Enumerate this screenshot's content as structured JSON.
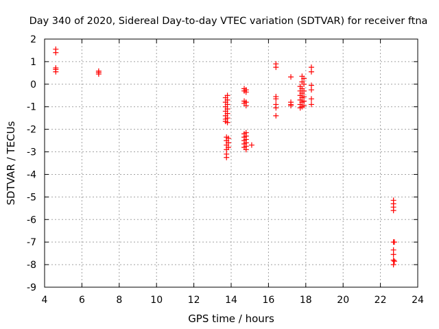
{
  "chart_data": {
    "type": "scatter",
    "title": "Day 340 of 2020, Sidereal Day-to-day VTEC variation (SDTVAR) for receiver ftna",
    "xlabel": "GPS time / hours",
    "ylabel": "SDTVAR / TECUs",
    "xlim": [
      4,
      24
    ],
    "ylim": [
      -9,
      2
    ],
    "xticks": [
      "4",
      "6",
      "8",
      "10",
      "12",
      "14",
      "16",
      "18",
      "20",
      "22",
      "24"
    ],
    "yticks": [
      "2",
      "1",
      "0",
      "-1",
      "-2",
      "-3",
      "-4",
      "-5",
      "-6",
      "-7",
      "-8",
      "-9"
    ],
    "grid": true,
    "marker": "+",
    "series": [
      {
        "name": "SDTVAR",
        "color": "#ff0000",
        "points": [
          [
            4.6,
            1.55
          ],
          [
            4.6,
            1.4
          ],
          [
            4.6,
            0.72
          ],
          [
            4.6,
            0.65
          ],
          [
            4.6,
            0.55
          ],
          [
            6.9,
            0.58
          ],
          [
            6.9,
            0.52
          ],
          [
            6.9,
            0.45
          ],
          [
            13.7,
            -0.6
          ],
          [
            13.7,
            -0.8
          ],
          [
            13.7,
            -1.0
          ],
          [
            13.7,
            -1.2
          ],
          [
            13.7,
            -1.4
          ],
          [
            13.7,
            -1.55
          ],
          [
            13.7,
            -1.65
          ],
          [
            13.8,
            -0.5
          ],
          [
            13.8,
            -0.7
          ],
          [
            13.8,
            -0.9
          ],
          [
            13.8,
            -1.1
          ],
          [
            13.8,
            -1.3
          ],
          [
            13.8,
            -1.5
          ],
          [
            13.8,
            -1.7
          ],
          [
            13.75,
            -2.35
          ],
          [
            13.75,
            -2.5
          ],
          [
            13.75,
            -2.7
          ],
          [
            13.75,
            -2.9
          ],
          [
            13.75,
            -3.1
          ],
          [
            13.75,
            -3.25
          ],
          [
            13.85,
            -2.4
          ],
          [
            13.85,
            -2.6
          ],
          [
            13.85,
            -2.8
          ],
          [
            14.7,
            -0.2
          ],
          [
            14.7,
            -0.3
          ],
          [
            14.7,
            -0.75
          ],
          [
            14.7,
            -0.85
          ],
          [
            14.8,
            -0.25
          ],
          [
            14.8,
            -0.35
          ],
          [
            14.8,
            -0.8
          ],
          [
            14.8,
            -0.95
          ],
          [
            14.7,
            -2.2
          ],
          [
            14.7,
            -2.35
          ],
          [
            14.7,
            -2.5
          ],
          [
            14.7,
            -2.65
          ],
          [
            14.7,
            -2.8
          ],
          [
            14.8,
            -2.15
          ],
          [
            14.8,
            -2.3
          ],
          [
            14.8,
            -2.45
          ],
          [
            14.8,
            -2.6
          ],
          [
            14.8,
            -2.75
          ],
          [
            14.8,
            -2.9
          ],
          [
            15.1,
            -2.7
          ],
          [
            16.4,
            0.9
          ],
          [
            16.4,
            0.75
          ],
          [
            16.4,
            -0.55
          ],
          [
            16.4,
            -0.65
          ],
          [
            16.4,
            -0.9
          ],
          [
            16.4,
            -1.05
          ],
          [
            16.4,
            -1.4
          ],
          [
            17.2,
            0.32
          ],
          [
            17.2,
            -0.8
          ],
          [
            17.2,
            -0.9
          ],
          [
            17.2,
            -0.95
          ],
          [
            17.7,
            -0.1
          ],
          [
            17.7,
            -0.3
          ],
          [
            17.7,
            -0.5
          ],
          [
            17.7,
            -0.7
          ],
          [
            17.7,
            -0.9
          ],
          [
            17.7,
            -1.05
          ],
          [
            17.8,
            0.35
          ],
          [
            17.8,
            0.1
          ],
          [
            17.8,
            -0.2
          ],
          [
            17.8,
            -0.4
          ],
          [
            17.8,
            -0.6
          ],
          [
            17.8,
            -0.8
          ],
          [
            17.8,
            -1.0
          ],
          [
            17.9,
            0.25
          ],
          [
            17.9,
            0.0
          ],
          [
            17.9,
            -0.3
          ],
          [
            17.9,
            -0.55
          ],
          [
            17.9,
            -0.75
          ],
          [
            17.9,
            -0.95
          ],
          [
            18.3,
            0.75
          ],
          [
            18.3,
            0.55
          ],
          [
            18.3,
            -0.05
          ],
          [
            18.3,
            -0.25
          ],
          [
            18.3,
            -0.65
          ],
          [
            18.3,
            -0.9
          ],
          [
            22.7,
            -5.15
          ],
          [
            22.7,
            -5.3
          ],
          [
            22.7,
            -5.45
          ],
          [
            22.7,
            -5.6
          ],
          [
            22.7,
            -7.0
          ],
          [
            22.7,
            -7.35
          ],
          [
            22.7,
            -7.55
          ],
          [
            22.7,
            -7.8
          ],
          [
            22.7,
            -8.0
          ],
          [
            22.75,
            -7.0
          ],
          [
            22.75,
            -7.85
          ]
        ]
      }
    ]
  }
}
